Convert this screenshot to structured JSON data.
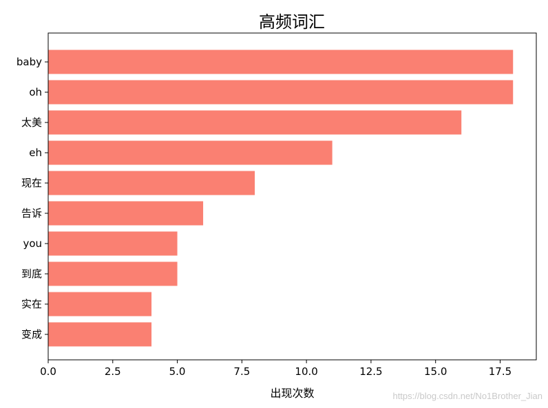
{
  "chart_data": {
    "type": "bar",
    "orientation": "horizontal",
    "title": "高频词汇",
    "xlabel": "出现次数",
    "ylabel": "",
    "categories": [
      "baby",
      "oh",
      "太美",
      "eh",
      "现在",
      "告诉",
      "you",
      "到底",
      "实在",
      "变成"
    ],
    "values": [
      18,
      18,
      16,
      11,
      8,
      6,
      5,
      5,
      4,
      4
    ],
    "xlim": [
      0,
      18.9
    ],
    "xticks": [
      "0.0",
      "2.5",
      "5.0",
      "7.5",
      "10.0",
      "12.5",
      "15.0",
      "17.5"
    ],
    "bar_color": "#fa8072",
    "grid": false,
    "legend": "none"
  },
  "watermark": "https://blog.csdn.net/No1Brother_Jian"
}
